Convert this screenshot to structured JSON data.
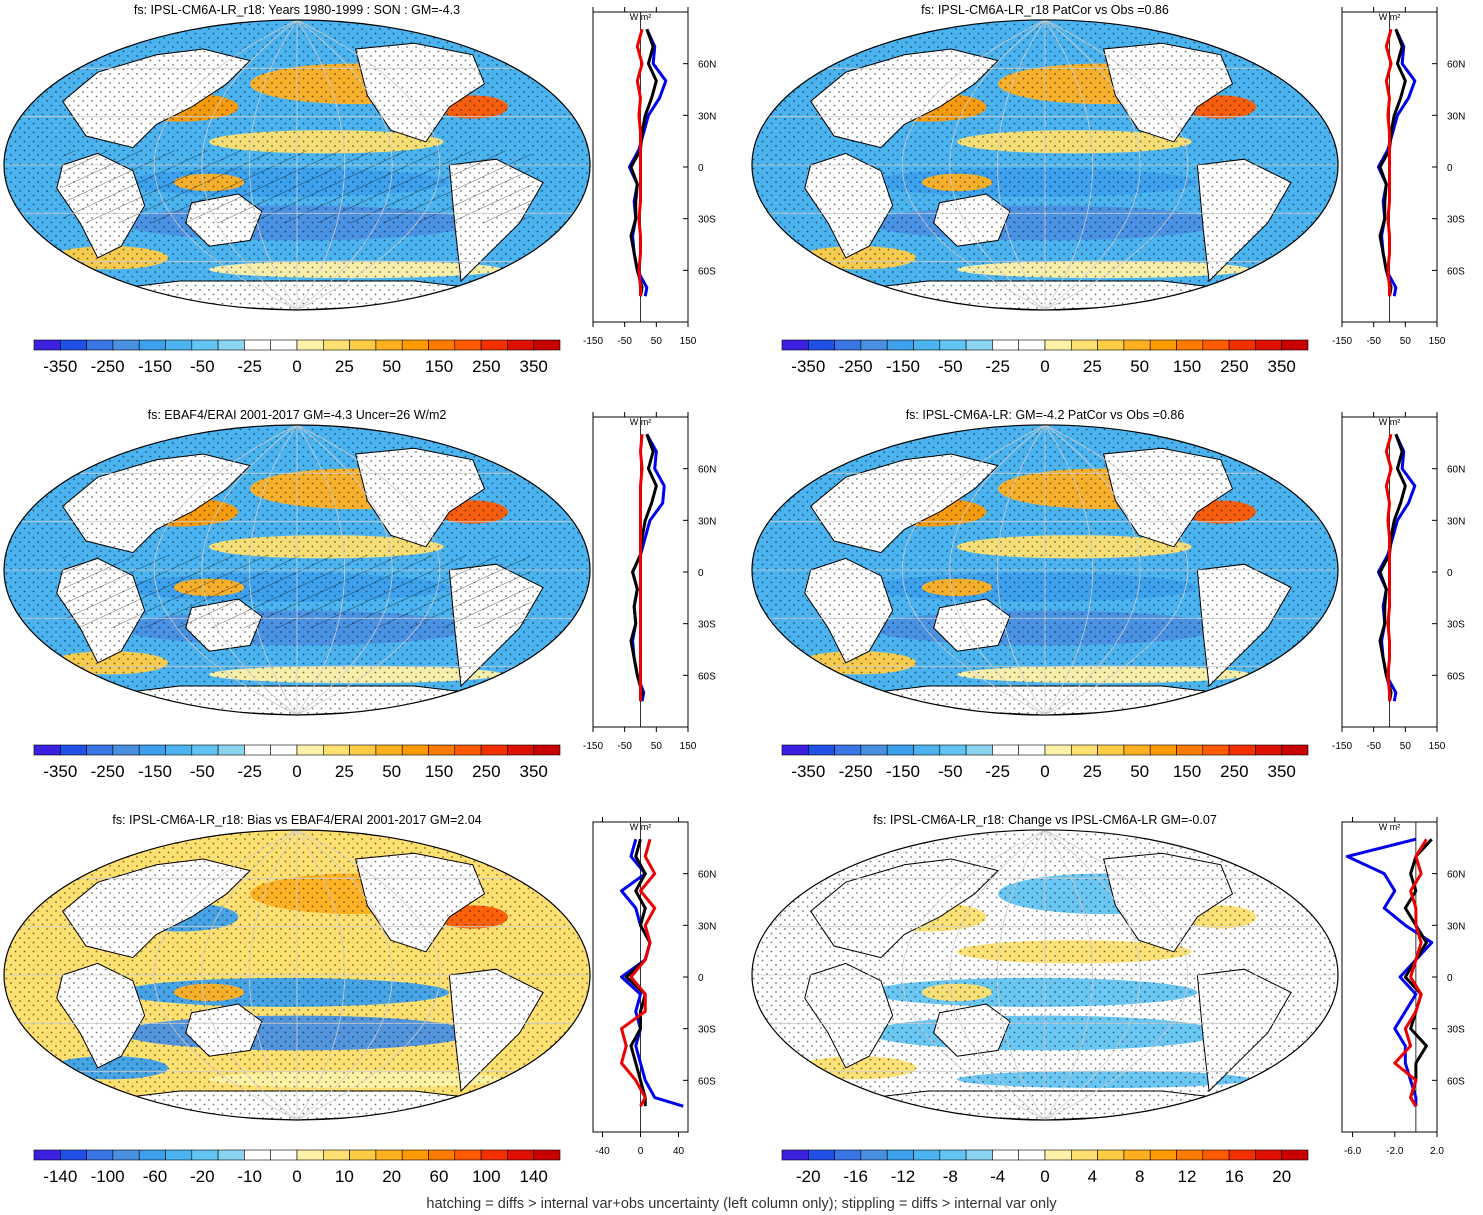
{
  "footer": "hatching = diffs > internal var+obs uncertainty (left column only); stippling = diffs > internal var only",
  "colorbar_colors": [
    "#3b20e0",
    "#2050e6",
    "#3a76e6",
    "#4a90e2",
    "#3ca0ec",
    "#4bb4f0",
    "#62c4f2",
    "#8ad4f0",
    "#ffffff",
    "#ffffff",
    "#fff2a8",
    "#ffe070",
    "#ffcc44",
    "#ffb020",
    "#ff9a00",
    "#ff7a00",
    "#ff5a00",
    "#f53000",
    "#e01000",
    "#c80000"
  ],
  "lat_labels": [
    "60N",
    "30N",
    "0",
    "30S",
    "60S"
  ],
  "panels": [
    {
      "title": "fs: IPSL-CM6A-LR_r18: Years 1980-1999 : SON : GM=-4.3",
      "colorbar_labels": [
        "-350",
        "-250",
        "-150",
        "-50",
        "-25",
        "0",
        "25",
        "50",
        "150",
        "250",
        "350"
      ],
      "chart_data": {
        "type": "line",
        "xlabel": "W m²",
        "xticks": [
          "-150",
          "-50",
          "50",
          "150"
        ],
        "xlim": [
          -150,
          150
        ],
        "ylim": [
          -90,
          90
        ],
        "series": [
          {
            "color": "#0000ee",
            "lat": [
              80,
              70,
              60,
              50,
              40,
              30,
              20,
              10,
              0,
              -10,
              -20,
              -30,
              -40,
              -50,
              -60,
              -70,
              -75
            ],
            "values": [
              20,
              45,
              40,
              80,
              60,
              25,
              10,
              -5,
              -35,
              -10,
              -20,
              -15,
              -25,
              -20,
              -10,
              20,
              15
            ]
          },
          {
            "color": "#000000",
            "lat": [
              80,
              70,
              60,
              50,
              40,
              30,
              20,
              10,
              0,
              -10,
              -20,
              -30,
              -40,
              -50,
              -60,
              -70,
              -75
            ],
            "values": [
              20,
              40,
              25,
              50,
              35,
              15,
              5,
              0,
              -30,
              -10,
              -15,
              -15,
              -30,
              -20,
              -10,
              5,
              0
            ]
          },
          {
            "color": "#ee0000",
            "lat": [
              80,
              70,
              60,
              50,
              40,
              30,
              20,
              10,
              0,
              -10,
              -20,
              -30,
              -40,
              -50,
              -60,
              -70,
              -75
            ],
            "values": [
              5,
              -10,
              5,
              -10,
              0,
              -5,
              0,
              0,
              0,
              0,
              0,
              -5,
              0,
              0,
              -5,
              0,
              0
            ]
          }
        ]
      }
    },
    {
      "title": "fs: IPSL-CM6A-LR_r18 PatCor vs Obs =0.86",
      "colorbar_labels": [
        "-350",
        "-250",
        "-150",
        "-50",
        "-25",
        "0",
        "25",
        "50",
        "150",
        "250",
        "350"
      ],
      "chart_data": {
        "type": "line",
        "xlabel": "W m²",
        "xticks": [
          "-150",
          "-50",
          "50",
          "150"
        ],
        "xlim": [
          -150,
          150
        ],
        "ylim": [
          -90,
          90
        ],
        "series": [
          {
            "color": "#0000ee",
            "lat": [
              80,
              70,
              60,
              50,
              40,
              30,
              20,
              10,
              0,
              -10,
              -20,
              -30,
              -40,
              -50,
              -60,
              -70,
              -75
            ],
            "values": [
              20,
              45,
              40,
              80,
              60,
              25,
              10,
              -5,
              -35,
              -10,
              -20,
              -15,
              -25,
              -20,
              -10,
              20,
              15
            ]
          },
          {
            "color": "#000000",
            "lat": [
              80,
              70,
              60,
              50,
              40,
              30,
              20,
              10,
              0,
              -10,
              -20,
              -30,
              -40,
              -50,
              -60,
              -70,
              -75
            ],
            "values": [
              20,
              40,
              25,
              50,
              35,
              15,
              5,
              0,
              -30,
              -10,
              -15,
              -15,
              -30,
              -20,
              -10,
              5,
              0
            ]
          },
          {
            "color": "#ee0000",
            "lat": [
              80,
              70,
              60,
              50,
              40,
              30,
              20,
              10,
              0,
              -10,
              -20,
              -30,
              -40,
              -50,
              -60,
              -70,
              -75
            ],
            "values": [
              5,
              -10,
              5,
              -10,
              0,
              -5,
              0,
              0,
              0,
              0,
              0,
              -5,
              0,
              0,
              -5,
              0,
              0
            ]
          }
        ]
      }
    },
    {
      "title": "fs: EBAF4/ERAI 2001-2017 GM=-4.3 Uncer=26 W/m2",
      "colorbar_labels": [
        "-350",
        "-250",
        "-150",
        "-50",
        "-25",
        "0",
        "25",
        "50",
        "150",
        "250",
        "350"
      ],
      "chart_data": {
        "type": "line",
        "xlabel": "W m²",
        "xticks": [
          "-150",
          "-50",
          "50",
          "150"
        ],
        "xlim": [
          -150,
          150
        ],
        "ylim": [
          -90,
          90
        ],
        "series": [
          {
            "color": "#0000ee",
            "lat": [
              80,
              70,
              60,
              50,
              40,
              30,
              20,
              10,
              0,
              -10,
              -20,
              -30,
              -40,
              -50,
              -60,
              -70,
              -75
            ],
            "values": [
              20,
              50,
              45,
              75,
              70,
              30,
              15,
              0,
              -25,
              -10,
              -20,
              -15,
              -25,
              -20,
              -10,
              10,
              5
            ]
          },
          {
            "color": "#000000",
            "lat": [
              80,
              70,
              60,
              50,
              40,
              30,
              20,
              10,
              0,
              -10,
              -20,
              -30,
              -40,
              -50,
              -60,
              -70,
              -75
            ],
            "values": [
              20,
              40,
              25,
              50,
              35,
              15,
              5,
              0,
              -25,
              -10,
              -20,
              -15,
              -30,
              -20,
              -10,
              5,
              0
            ]
          },
          {
            "color": "#ee0000",
            "lat": [
              80,
              70,
              60,
              50,
              40,
              30,
              20,
              10,
              0,
              -10,
              -20,
              -30,
              -40,
              -50,
              -60,
              -70,
              -75
            ],
            "values": [
              5,
              0,
              5,
              0,
              0,
              0,
              0,
              0,
              0,
              0,
              0,
              0,
              0,
              0,
              0,
              0,
              0
            ]
          }
        ]
      }
    },
    {
      "title": "fs: IPSL-CM6A-LR: GM=-4.2 PatCor vs Obs =0.86",
      "colorbar_labels": [
        "-350",
        "-250",
        "-150",
        "-50",
        "-25",
        "0",
        "25",
        "50",
        "150",
        "250",
        "350"
      ],
      "chart_data": {
        "type": "line",
        "xlabel": "W m²",
        "xticks": [
          "-150",
          "-50",
          "50",
          "150"
        ],
        "xlim": [
          -150,
          150
        ],
        "ylim": [
          -90,
          90
        ],
        "series": [
          {
            "color": "#0000ee",
            "lat": [
              80,
              70,
              60,
              50,
              40,
              30,
              20,
              10,
              0,
              -10,
              -20,
              -30,
              -40,
              -50,
              -60,
              -70,
              -75
            ],
            "values": [
              20,
              45,
              40,
              80,
              60,
              25,
              10,
              -5,
              -35,
              -10,
              -20,
              -15,
              -25,
              -20,
              -10,
              20,
              15
            ]
          },
          {
            "color": "#000000",
            "lat": [
              80,
              70,
              60,
              50,
              40,
              30,
              20,
              10,
              0,
              -10,
              -20,
              -30,
              -40,
              -50,
              -60,
              -70,
              -75
            ],
            "values": [
              20,
              40,
              25,
              50,
              35,
              15,
              5,
              0,
              -30,
              -10,
              -15,
              -15,
              -30,
              -20,
              -10,
              5,
              0
            ]
          },
          {
            "color": "#ee0000",
            "lat": [
              80,
              70,
              60,
              50,
              40,
              30,
              20,
              10,
              0,
              -10,
              -20,
              -30,
              -40,
              -50,
              -60,
              -70,
              -75
            ],
            "values": [
              5,
              -10,
              5,
              -10,
              0,
              -5,
              0,
              0,
              0,
              0,
              0,
              -5,
              0,
              0,
              -5,
              0,
              0
            ]
          }
        ]
      }
    },
    {
      "title": "fs: IPSL-CM6A-LR_r18: Bias vs EBAF4/ERAI 2001-2017  GM=2.04",
      "colorbar_labels": [
        "-140",
        "-100",
        "-60",
        "-20",
        "-10",
        "0",
        "10",
        "20",
        "60",
        "100",
        "140"
      ],
      "chart_data": {
        "type": "line",
        "xlabel": "W m²",
        "xticks": [
          "-40",
          "0",
          "40"
        ],
        "xlim": [
          -50,
          50
        ],
        "ylim": [
          -90,
          90
        ],
        "series": [
          {
            "color": "#0000ee",
            "lat": [
              80,
              70,
              60,
              50,
              40,
              30,
              20,
              10,
              0,
              -10,
              -20,
              -30,
              -40,
              -50,
              -60,
              -70,
              -75
            ],
            "values": [
              -5,
              -10,
              5,
              -20,
              -5,
              0,
              10,
              5,
              -20,
              0,
              -5,
              0,
              -5,
              0,
              5,
              15,
              45
            ]
          },
          {
            "color": "#000000",
            "lat": [
              80,
              70,
              60,
              50,
              40,
              30,
              20,
              10,
              0,
              -10,
              -20,
              -30,
              -40,
              -50,
              -60,
              -70,
              -75
            ],
            "values": [
              0,
              -5,
              5,
              -5,
              5,
              0,
              10,
              5,
              -15,
              5,
              0,
              0,
              -10,
              -5,
              0,
              5,
              5
            ]
          },
          {
            "color": "#ee0000",
            "lat": [
              80,
              70,
              60,
              50,
              40,
              30,
              20,
              10,
              0,
              -10,
              -20,
              -30,
              -40,
              -50,
              -60,
              -70,
              -75
            ],
            "values": [
              10,
              5,
              15,
              0,
              15,
              5,
              10,
              5,
              -10,
              5,
              5,
              -20,
              -15,
              -20,
              -5,
              5,
              0
            ]
          }
        ]
      }
    },
    {
      "title": "fs: IPSL-CM6A-LR_r18: Change vs IPSL-CM6A-LR GM=-0.07",
      "colorbar_labels": [
        "-20",
        "-16",
        "-12",
        "-8",
        "-4",
        "0",
        "4",
        "8",
        "12",
        "16",
        "20"
      ],
      "chart_data": {
        "type": "line",
        "xlabel": "W m²",
        "xticks": [
          "-6.0",
          "-2.0",
          "2.0"
        ],
        "xlim": [
          -7,
          2
        ],
        "ylim": [
          -90,
          90
        ],
        "series": [
          {
            "color": "#0000ee",
            "lat": [
              80,
              70,
              60,
              50,
              40,
              30,
              20,
              10,
              0,
              -10,
              -20,
              -30,
              -40,
              -50,
              -60,
              -70,
              -75
            ],
            "values": [
              0,
              -6.5,
              -3,
              -2,
              -3,
              -1,
              1.5,
              0,
              -1.5,
              0,
              -1,
              -2,
              -1,
              -1,
              -0.5,
              0,
              0
            ]
          },
          {
            "color": "#000000",
            "lat": [
              80,
              70,
              60,
              50,
              40,
              30,
              20,
              10,
              0,
              -10,
              -20,
              -30,
              -40,
              -50,
              -60,
              -70,
              -75
            ],
            "values": [
              1.5,
              0,
              -0.5,
              0,
              -1,
              0,
              1,
              0,
              -1,
              0.5,
              0,
              -0.5,
              1,
              0,
              0,
              -0.5,
              0
            ]
          },
          {
            "color": "#ee0000",
            "lat": [
              80,
              70,
              60,
              50,
              40,
              30,
              20,
              10,
              0,
              -10,
              -20,
              -30,
              -40,
              -50,
              -60,
              -70,
              -75
            ],
            "values": [
              1,
              0,
              0.5,
              -0.5,
              0,
              0,
              0.5,
              0,
              -0.5,
              0.5,
              0,
              -1,
              -0.5,
              -2,
              0,
              -0.5,
              0
            ]
          }
        ]
      }
    }
  ]
}
